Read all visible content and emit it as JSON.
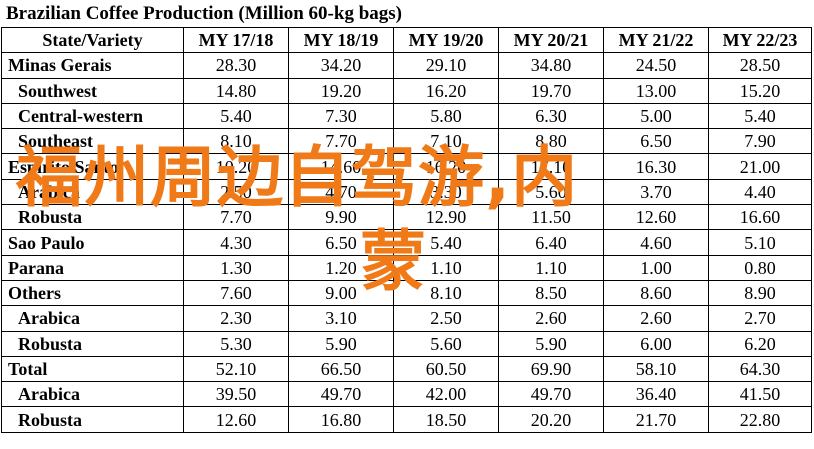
{
  "title": "Brazilian Coffee Production (Million 60-kg bags)",
  "table": {
    "headers": [
      "State/Variety",
      "MY 17/18",
      "MY 18/19",
      "MY 19/20",
      "MY 20/21",
      "MY 21/22",
      "MY 22/23"
    ],
    "rows": [
      {
        "label": "Minas Gerais",
        "sub": false,
        "values": [
          "28.30",
          "34.20",
          "29.10",
          "34.80",
          "24.50",
          "28.50"
        ]
      },
      {
        "label": "Southwest",
        "sub": true,
        "values": [
          "14.80",
          "19.20",
          "16.20",
          "19.70",
          "13.00",
          "15.20"
        ]
      },
      {
        "label": "Central-western",
        "sub": true,
        "values": [
          "5.40",
          "7.30",
          "5.80",
          "6.30",
          "5.00",
          "5.40"
        ]
      },
      {
        "label": "Southeast",
        "sub": true,
        "values": [
          "8.10",
          "7.70",
          "7.10",
          "8.80",
          "6.50",
          "7.90"
        ]
      },
      {
        "label": "Espirito Santo",
        "sub": false,
        "values": [
          "10.20",
          "14.60",
          "16.20",
          "17.10",
          "16.30",
          "21.00"
        ]
      },
      {
        "label": "Arabica",
        "sub": true,
        "values": [
          "2.50",
          "4.70",
          "3.30",
          "5.60",
          "3.70",
          "4.40"
        ]
      },
      {
        "label": "Robusta",
        "sub": true,
        "values": [
          "7.70",
          "9.90",
          "12.90",
          "11.50",
          "12.60",
          "16.60"
        ]
      },
      {
        "label": "Sao Paulo",
        "sub": false,
        "values": [
          "4.30",
          "6.50",
          "5.40",
          "6.40",
          "4.60",
          "5.10"
        ]
      },
      {
        "label": "Parana",
        "sub": false,
        "values": [
          "1.30",
          "1.20",
          "1.10",
          "1.10",
          "1.00",
          "0.80"
        ]
      },
      {
        "label": "Others",
        "sub": false,
        "values": [
          "7.60",
          "9.00",
          "8.10",
          "8.50",
          "8.60",
          "8.90"
        ]
      },
      {
        "label": "Arabica",
        "sub": true,
        "values": [
          "2.30",
          "3.10",
          "2.50",
          "2.60",
          "2.60",
          "2.70"
        ]
      },
      {
        "label": "Robusta",
        "sub": true,
        "values": [
          "5.30",
          "5.90",
          "5.60",
          "5.90",
          "6.00",
          "6.20"
        ]
      },
      {
        "label": "Total",
        "sub": false,
        "values": [
          "52.10",
          "66.50",
          "60.50",
          "69.90",
          "58.10",
          "64.30"
        ]
      },
      {
        "label": "Arabica",
        "sub": true,
        "values": [
          "39.50",
          "49.70",
          "42.00",
          "49.70",
          "36.40",
          "41.50"
        ]
      },
      {
        "label": "Robusta",
        "sub": true,
        "values": [
          "12.60",
          "16.80",
          "18.50",
          "20.20",
          "21.70",
          "22.80"
        ]
      }
    ]
  },
  "watermark": {
    "line1": "福州周边自驾游,内",
    "line2": "蒙",
    "color": "#f07a17"
  }
}
